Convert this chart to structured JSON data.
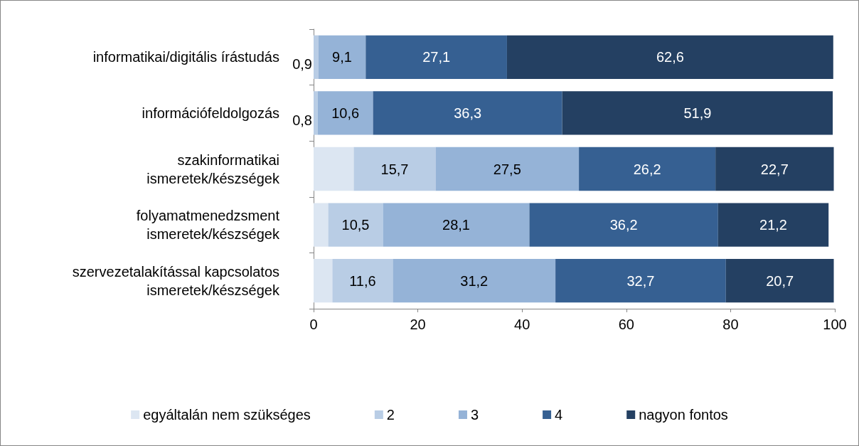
{
  "chart_data": {
    "type": "bar",
    "orientation": "horizontal",
    "stacked": true,
    "categories": [
      "informatikai/digitális írástudás",
      "információfeldolgozás",
      "szakinformatikai\nismeretek/készségek",
      "folyamatmenedzsment\nismeretek/készségek",
      "szervezetalakítással kapcsolatos\nismeretek/készségek"
    ],
    "series": [
      {
        "name": "egyáltalán nem szükséges",
        "color": "#dce6f2",
        "values": [
          null,
          null,
          7.7,
          2.8,
          3.6
        ],
        "value_labels": [
          null,
          null,
          null,
          null,
          null
        ]
      },
      {
        "name": "2",
        "color": "#b9cde5",
        "values": [
          0.9,
          0.8,
          15.7,
          10.5,
          11.6
        ],
        "value_labels": [
          "0,9",
          "0,8",
          "15,7",
          "10,5",
          "11,6"
        ]
      },
      {
        "name": "3",
        "color": "#95b3d7",
        "values": [
          9.1,
          10.6,
          27.5,
          28.1,
          31.2
        ],
        "value_labels": [
          "9,1",
          "10,6",
          "27,5",
          "28,1",
          "31,2"
        ]
      },
      {
        "name": "4",
        "color": "#366092",
        "values": [
          27.1,
          36.3,
          26.2,
          36.2,
          32.7
        ],
        "value_labels": [
          "27,1",
          "36,3",
          "26,2",
          "36,2",
          "32,7"
        ]
      },
      {
        "name": "nagyon fontos",
        "color": "#244062",
        "values": [
          62.6,
          51.9,
          22.7,
          21.2,
          20.7
        ],
        "value_labels": [
          "62,6",
          "51,9",
          "22,7",
          "21,2",
          "20,7"
        ]
      }
    ],
    "xlim": [
      0,
      100
    ],
    "xticks": [
      0,
      20,
      40,
      60,
      80,
      100
    ],
    "grid": false,
    "legend": "bottom"
  }
}
